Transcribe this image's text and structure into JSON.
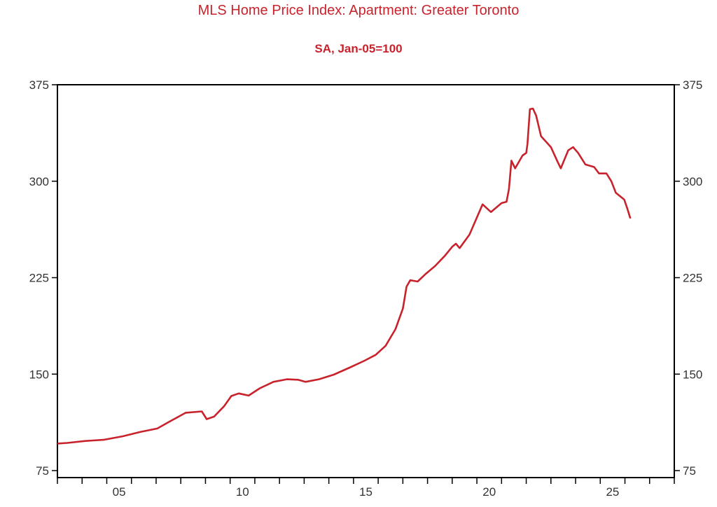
{
  "chart_data": {
    "type": "line",
    "title": "MLS Home Price Index: Apartment: Greater Toronto",
    "subtitle": "SA, Jan-05=100",
    "xlabel": "",
    "ylabel": "",
    "xlim": [
      2003,
      2028
    ],
    "ylim": [
      75,
      375
    ],
    "yticks": [
      "75",
      "150",
      "225",
      "300",
      "375"
    ],
    "ytick_values": [
      75,
      150,
      225,
      300,
      375
    ],
    "xtick_labels": [
      {
        "label": "05",
        "year": 2005
      },
      {
        "label": "10",
        "year": 2010
      },
      {
        "label": "15",
        "year": 2015
      },
      {
        "label": "20",
        "year": 2020
      },
      {
        "label": "25",
        "year": 2025
      }
    ],
    "grid": false,
    "colors": {
      "line": "#c8232c",
      "title": "#c8232c",
      "axis": "#000000"
    },
    "series": [
      {
        "name": "MLS HPI Apartment Greater Toronto",
        "x": [
          2003.0,
          2003.4,
          2004.1,
          2004.9,
          2005.65,
          2006.35,
          2007.05,
          2007.5,
          2008.2,
          2008.85,
          2009.05,
          2009.35,
          2009.75,
          2010.05,
          2010.35,
          2010.75,
          2011.2,
          2011.75,
          2012.3,
          2012.75,
          2013.05,
          2013.6,
          2014.2,
          2014.9,
          2015.45,
          2015.9,
          2016.3,
          2016.7,
          2017.0,
          2017.15,
          2017.3,
          2017.6,
          2017.9,
          2018.3,
          2018.7,
          2019.0,
          2019.15,
          2019.3,
          2019.7,
          2020.23,
          2020.57,
          2021.0,
          2021.2,
          2021.3,
          2021.4,
          2021.55,
          2021.85,
          2022.0,
          2022.05,
          2022.15,
          2022.27,
          2022.4,
          2022.6,
          2023.0,
          2023.25,
          2023.4,
          2023.7,
          2023.9,
          2024.1,
          2024.4,
          2024.75,
          2024.95,
          2025.25,
          2025.45,
          2025.63,
          2025.97,
          2026.1,
          2026.22
        ],
        "y": [
          96,
          96.5,
          98,
          99,
          101.7,
          105,
          107.7,
          112.6,
          120,
          121,
          115,
          117,
          125,
          133,
          135,
          133.3,
          139,
          144,
          146,
          145.6,
          144,
          146,
          149.6,
          155.6,
          160.5,
          165,
          172,
          185,
          201,
          218,
          223,
          222,
          227.5,
          234,
          242,
          249,
          251.4,
          248,
          258.5,
          282,
          276,
          283,
          284,
          294,
          316,
          310,
          320,
          322,
          329,
          356,
          356.5,
          351,
          335,
          326.5,
          316,
          310,
          324,
          326.5,
          322,
          313,
          311,
          306,
          306,
          300,
          291,
          285.7,
          278.6,
          271
        ]
      }
    ]
  }
}
